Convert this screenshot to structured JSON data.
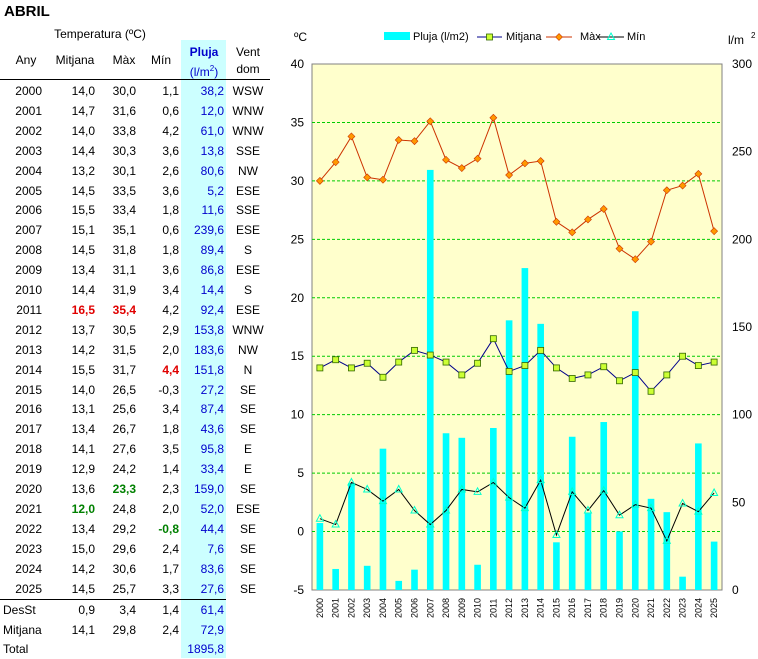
{
  "title": "ABRIL",
  "table": {
    "group_header": "Temperatura (ºC)",
    "columns": {
      "any": "Any",
      "mitjana": "Mitjana",
      "max": "Màx",
      "min": "Mín",
      "pluja_line1": "Pluja",
      "pluja_line2": "(l/m",
      "pluja_sup": "2",
      "pluja_close": ")",
      "vent_line1": "Vent",
      "vent_line2": "dom"
    },
    "rows": [
      {
        "any": "2000",
        "mitjana": "14,0",
        "max": "30,0",
        "min": "1,1",
        "pluja": "38,2",
        "vent": "WSW"
      },
      {
        "any": "2001",
        "mitjana": "14,7",
        "max": "31,6",
        "min": "0,6",
        "pluja": "12,0",
        "vent": "WNW"
      },
      {
        "any": "2002",
        "mitjana": "14,0",
        "max": "33,8",
        "min": "4,2",
        "pluja": "61,0",
        "vent": "WNW"
      },
      {
        "any": "2003",
        "mitjana": "14,4",
        "max": "30,3",
        "min": "3,6",
        "pluja": "13,8",
        "vent": "SSE"
      },
      {
        "any": "2004",
        "mitjana": "13,2",
        "max": "30,1",
        "min": "2,6",
        "pluja": "80,6",
        "vent": "NW"
      },
      {
        "any": "2005",
        "mitjana": "14,5",
        "max": "33,5",
        "min": "3,6",
        "pluja": "5,2",
        "vent": "ESE"
      },
      {
        "any": "2006",
        "mitjana": "15,5",
        "max": "33,4",
        "min": "1,8",
        "pluja": "11,6",
        "vent": "SSE"
      },
      {
        "any": "2007",
        "mitjana": "15,1",
        "max": "35,1",
        "min": "0,6",
        "pluja": "239,6",
        "vent": "ESE"
      },
      {
        "any": "2008",
        "mitjana": "14,5",
        "max": "31,8",
        "min": "1,8",
        "pluja": "89,4",
        "vent": "S"
      },
      {
        "any": "2009",
        "mitjana": "13,4",
        "max": "31,1",
        "min": "3,6",
        "pluja": "86,8",
        "vent": "ESE"
      },
      {
        "any": "2010",
        "mitjana": "14,4",
        "max": "31,9",
        "min": "3,4",
        "pluja": "14,4",
        "vent": "S"
      },
      {
        "any": "2011",
        "mitjana": "16,5",
        "max": "35,4",
        "min": "4,2",
        "pluja": "92,4",
        "vent": "ESE",
        "hl_mitjana": "red",
        "hl_max": "red"
      },
      {
        "any": "2012",
        "mitjana": "13,7",
        "max": "30,5",
        "min": "2,9",
        "pluja": "153,8",
        "vent": "WNW"
      },
      {
        "any": "2013",
        "mitjana": "14,2",
        "max": "31,5",
        "min": "2,0",
        "pluja": "183,6",
        "vent": "NW"
      },
      {
        "any": "2014",
        "mitjana": "15,5",
        "max": "31,7",
        "min": "4,4",
        "pluja": "151,8",
        "vent": "N",
        "hl_min": "red"
      },
      {
        "any": "2015",
        "mitjana": "14,0",
        "max": "26,5",
        "min": "-0,3",
        "pluja": "27,2",
        "vent": "SE"
      },
      {
        "any": "2016",
        "mitjana": "13,1",
        "max": "25,6",
        "min": "3,4",
        "pluja": "87,4",
        "vent": "SE"
      },
      {
        "any": "2017",
        "mitjana": "13,4",
        "max": "26,7",
        "min": "1,8",
        "pluja": "43,6",
        "vent": "SE"
      },
      {
        "any": "2018",
        "mitjana": "14,1",
        "max": "27,6",
        "min": "3,5",
        "pluja": "95,8",
        "vent": "E"
      },
      {
        "any": "2019",
        "mitjana": "12,9",
        "max": "24,2",
        "min": "1,4",
        "pluja": "33,4",
        "vent": "E"
      },
      {
        "any": "2020",
        "mitjana": "13,6",
        "max": "23,3",
        "min": "2,3",
        "pluja": "159,0",
        "vent": "SE",
        "hl_max": "green"
      },
      {
        "any": "2021",
        "mitjana": "12,0",
        "max": "24,8",
        "min": "2,0",
        "pluja": "52,0",
        "vent": "ESE",
        "hl_mitjana": "green"
      },
      {
        "any": "2022",
        "mitjana": "13,4",
        "max": "29,2",
        "min": "-0,8",
        "pluja": "44,4",
        "vent": "SE",
        "hl_min": "green"
      },
      {
        "any": "2023",
        "mitjana": "15,0",
        "max": "29,6",
        "min": "2,4",
        "pluja": "7,6",
        "vent": "SE"
      },
      {
        "any": "2024",
        "mitjana": "14,2",
        "max": "30,6",
        "min": "1,7",
        "pluja": "83,6",
        "vent": "SE"
      },
      {
        "any": "2025",
        "mitjana": "14,5",
        "max": "25,7",
        "min": "3,3",
        "pluja": "27,6",
        "vent": "SE"
      }
    ],
    "summary": [
      {
        "label": "DesSt",
        "mitjana": "0,9",
        "max": "3,4",
        "min": "1,4",
        "pluja": "61,4"
      },
      {
        "label": "Mitjana",
        "mitjana": "14,1",
        "max": "29,8",
        "min": "2,4",
        "pluja": "72,9"
      },
      {
        "label": "Total",
        "mitjana": "",
        "max": "",
        "min": "",
        "pluja": "1895,8"
      }
    ]
  },
  "colors": {
    "pluja_bg": "#ccffff",
    "plot_bg": "#ffffcc",
    "bar": "#00ffff",
    "mitjana_line": "#00008b",
    "mitjana_marker": "#ccff33",
    "max_line": "#cc3300",
    "max_marker": "#ff9900",
    "min_line": "#000000",
    "min_marker": "#00ffcc",
    "grid": "#00cc00",
    "highlight_red": "#e00000",
    "highlight_green": "#008000",
    "pluja_text": "#0000cc"
  },
  "chart_data": {
    "type": "bar+line",
    "categories": [
      "2000",
      "2001",
      "2002",
      "2003",
      "2004",
      "2005",
      "2006",
      "2007",
      "2008",
      "2009",
      "2010",
      "2011",
      "2012",
      "2013",
      "2014",
      "2015",
      "2016",
      "2017",
      "2018",
      "2019",
      "2020",
      "2021",
      "2022",
      "2023",
      "2024",
      "2025"
    ],
    "left_axis_label": "ºC",
    "right_axis_label": "l/m",
    "right_axis_label_sup": "2",
    "left_ticks": [
      "40",
      "35",
      "30",
      "25",
      "20",
      "15",
      "10",
      "5",
      "0",
      "-5"
    ],
    "right_ticks": [
      "300",
      "250",
      "200",
      "150",
      "100",
      "50",
      "0"
    ],
    "ylim_left": [
      -5,
      40
    ],
    "ylim_right": [
      0,
      300
    ],
    "grid": true,
    "legend_position": "top",
    "legend": [
      "Pluja (l/m2)",
      "Mitjana",
      "Màx",
      "Mín"
    ],
    "series": [
      {
        "name": "Pluja (l/m2)",
        "axis": "right",
        "kind": "bar",
        "values": [
          38.2,
          12.0,
          61.0,
          13.8,
          80.6,
          5.2,
          11.6,
          239.6,
          89.4,
          86.8,
          14.4,
          92.4,
          153.8,
          183.6,
          151.8,
          27.2,
          87.4,
          43.6,
          95.8,
          33.4,
          159.0,
          52.0,
          44.4,
          7.6,
          83.6,
          27.6
        ]
      },
      {
        "name": "Mitjana",
        "axis": "left",
        "kind": "line",
        "values": [
          14.0,
          14.7,
          14.0,
          14.4,
          13.2,
          14.5,
          15.5,
          15.1,
          14.5,
          13.4,
          14.4,
          16.5,
          13.7,
          14.2,
          15.5,
          14.0,
          13.1,
          13.4,
          14.1,
          12.9,
          13.6,
          12.0,
          13.4,
          15.0,
          14.2,
          14.5
        ]
      },
      {
        "name": "Màx",
        "axis": "left",
        "kind": "line",
        "values": [
          30.0,
          31.6,
          33.8,
          30.3,
          30.1,
          33.5,
          33.4,
          35.1,
          31.8,
          31.1,
          31.9,
          35.4,
          30.5,
          31.5,
          31.7,
          26.5,
          25.6,
          26.7,
          27.6,
          24.2,
          23.3,
          24.8,
          29.2,
          29.6,
          30.6,
          25.7
        ]
      },
      {
        "name": "Mín",
        "axis": "left",
        "kind": "line",
        "values": [
          1.1,
          0.6,
          4.2,
          3.6,
          2.6,
          3.6,
          1.8,
          0.6,
          1.8,
          3.6,
          3.4,
          4.2,
          2.9,
          2.0,
          4.4,
          -0.3,
          3.4,
          1.8,
          3.5,
          1.4,
          2.3,
          2.0,
          -0.8,
          2.4,
          1.7,
          3.3
        ]
      }
    ]
  }
}
